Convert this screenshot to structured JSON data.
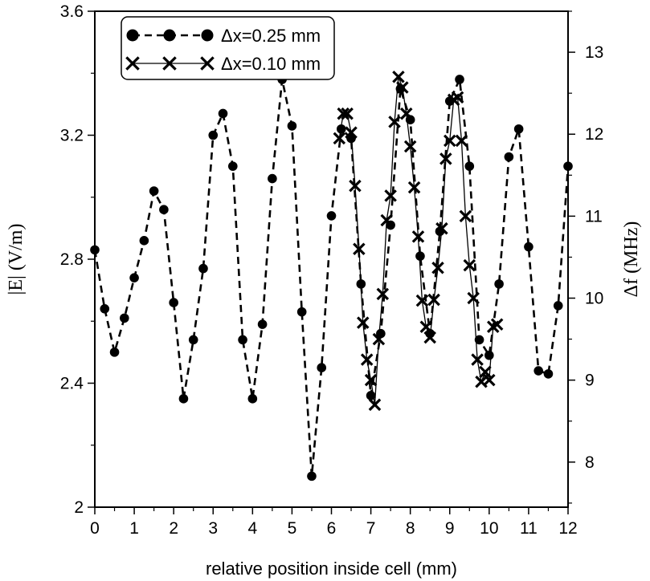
{
  "chart_data": {
    "type": "line",
    "xlabel": "relative position inside cell (mm)",
    "ylabel_left": "|E|  (V/m)",
    "ylabel_right": "Δf  (MHz)",
    "xlim": [
      0,
      12
    ],
    "ylim_left": [
      2.0,
      3.6
    ],
    "ylim_right": [
      7.45,
      13.5
    ],
    "x_ticks": [
      0,
      1,
      2,
      3,
      4,
      5,
      6,
      7,
      8,
      9,
      10,
      11,
      12
    ],
    "x_tick_labels": [
      "0",
      "1",
      "2",
      "3",
      "4",
      "5",
      "6",
      "7",
      "8",
      "9",
      "10",
      "11",
      "12"
    ],
    "y_left_ticks": [
      2.0,
      2.4,
      2.8,
      3.2,
      3.6
    ],
    "y_left_tick_labels": [
      "2",
      "2.4",
      "2.8",
      "3.2",
      "3.6"
    ],
    "y_right_ticks": [
      8,
      9,
      10,
      11,
      12,
      13
    ],
    "y_right_tick_labels": [
      "8",
      "9",
      "10",
      "11",
      "12",
      "13"
    ],
    "grid": false,
    "legend_position": "top-left",
    "series": [
      {
        "name": "Δx=0.25 mm",
        "axis": "left",
        "marker": "filled-circle",
        "line": "dashed",
        "x": [
          0,
          0.25,
          0.5,
          0.75,
          1.0,
          1.25,
          1.5,
          1.75,
          2.0,
          2.25,
          2.5,
          2.75,
          3.0,
          3.25,
          3.5,
          3.75,
          4.0,
          4.25,
          4.5,
          4.75,
          5.0,
          5.25,
          5.5,
          5.75,
          6.0,
          6.25,
          6.5,
          6.75,
          7.0,
          7.25,
          7.5,
          7.75,
          8.0,
          8.25,
          8.5,
          8.75,
          9.0,
          9.25,
          9.5,
          9.75,
          10.0,
          10.25,
          10.5,
          10.75,
          11.0,
          11.25,
          11.5,
          11.75,
          12.0
        ],
        "values": [
          2.83,
          2.64,
          2.5,
          2.61,
          2.74,
          2.86,
          3.02,
          2.96,
          2.66,
          2.35,
          2.54,
          2.77,
          3.2,
          3.27,
          3.1,
          2.54,
          2.35,
          2.59,
          3.06,
          3.38,
          3.23,
          2.63,
          2.1,
          2.45,
          2.94,
          3.22,
          3.19,
          2.72,
          2.36,
          2.56,
          2.91,
          3.35,
          3.25,
          2.81,
          2.56,
          2.89,
          3.31,
          3.38,
          3.1,
          2.54,
          2.49,
          2.72,
          3.13,
          3.22,
          2.84,
          2.44,
          2.43,
          2.65,
          3.1
        ]
      },
      {
        "name": "Δx=0.10 mm",
        "axis": "right",
        "marker": "x",
        "line": "solid",
        "x": [
          6.2,
          6.3,
          6.4,
          6.5,
          6.6,
          6.7,
          6.8,
          6.9,
          7.0,
          7.1,
          7.2,
          7.3,
          7.4,
          7.5,
          7.6,
          7.7,
          7.8,
          7.9,
          8.0,
          8.1,
          8.2,
          8.3,
          8.4,
          8.5,
          8.6,
          8.7,
          8.8,
          8.9,
          9.0,
          9.1,
          9.2,
          9.3,
          9.4,
          9.5,
          9.6,
          9.7,
          9.8,
          9.9,
          10.0,
          10.1,
          10.2
        ],
        "values": [
          11.95,
          12.25,
          12.25,
          12.02,
          11.37,
          10.6,
          9.7,
          9.25,
          9.0,
          8.7,
          9.5,
          10.05,
          10.95,
          11.25,
          12.15,
          12.7,
          12.57,
          12.25,
          11.85,
          11.35,
          10.75,
          9.97,
          9.65,
          9.52,
          9.98,
          10.37,
          10.85,
          11.7,
          11.92,
          12.42,
          12.45,
          11.92,
          11.0,
          10.4,
          10.0,
          9.25,
          8.98,
          9.1,
          9.0,
          9.65,
          9.68
        ]
      }
    ]
  }
}
